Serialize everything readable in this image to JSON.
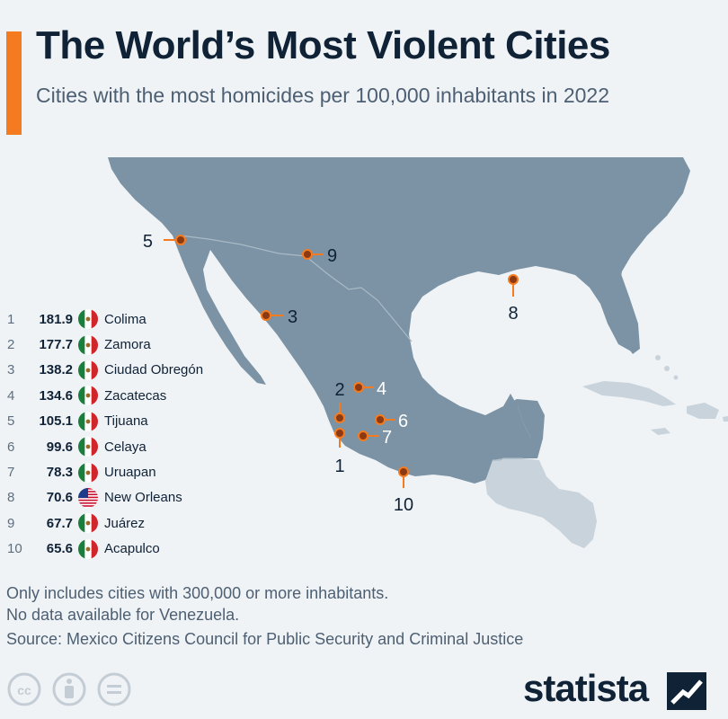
{
  "header": {
    "title": "The World’s Most Violent Cities",
    "subtitle": "Cities with the most homicides per 100,000 inhabitants in 2022"
  },
  "colors": {
    "accent": "#f47b20",
    "land_primary": "#7b93a4",
    "land_secondary": "#c8d3dc",
    "marker": "#8b3a14",
    "leader": "#f47b20",
    "brand_dark": "#0f2236"
  },
  "cities": [
    {
      "rank": "1",
      "value": "181.9",
      "flag": "mexico-flag-icon",
      "name": "Colima",
      "label": "1"
    },
    {
      "rank": "2",
      "value": "177.7",
      "flag": "mexico-flag-icon",
      "name": "Zamora",
      "label": "2"
    },
    {
      "rank": "3",
      "value": "138.2",
      "flag": "mexico-flag-icon",
      "name": "Ciudad Obregón",
      "label": "3"
    },
    {
      "rank": "4",
      "value": "134.6",
      "flag": "mexico-flag-icon",
      "name": "Zacatecas",
      "label": "4"
    },
    {
      "rank": "5",
      "value": "105.1",
      "flag": "mexico-flag-icon",
      "name": "Tijuana",
      "label": "5"
    },
    {
      "rank": "6",
      "value": "99.6",
      "flag": "mexico-flag-icon",
      "name": "Celaya",
      "label": "6"
    },
    {
      "rank": "7",
      "value": "78.3",
      "flag": "mexico-flag-icon",
      "name": "Uruapan",
      "label": "7"
    },
    {
      "rank": "8",
      "value": "70.6",
      "flag": "usa-flag-icon",
      "name": "New Orleans",
      "label": "8"
    },
    {
      "rank": "9",
      "value": "67.7",
      "flag": "mexico-flag-icon",
      "name": "Juárez",
      "label": "9"
    },
    {
      "rank": "10",
      "value": "65.6",
      "flag": "mexico-flag-icon",
      "name": "Acapulco",
      "label": "10"
    }
  ],
  "notes": [
    "Only includes cities with 300,000 or more inhabitants.",
    "No data available for Venezuela."
  ],
  "source": "Source: Mexico Citizens Council for Public Security and Criminal Justice",
  "license_icons": [
    "creative-commons-icon",
    "attribution-icon",
    "no-derivatives-icon"
  ],
  "brand": {
    "name": "statista",
    "icon": "statista-logo-icon"
  }
}
